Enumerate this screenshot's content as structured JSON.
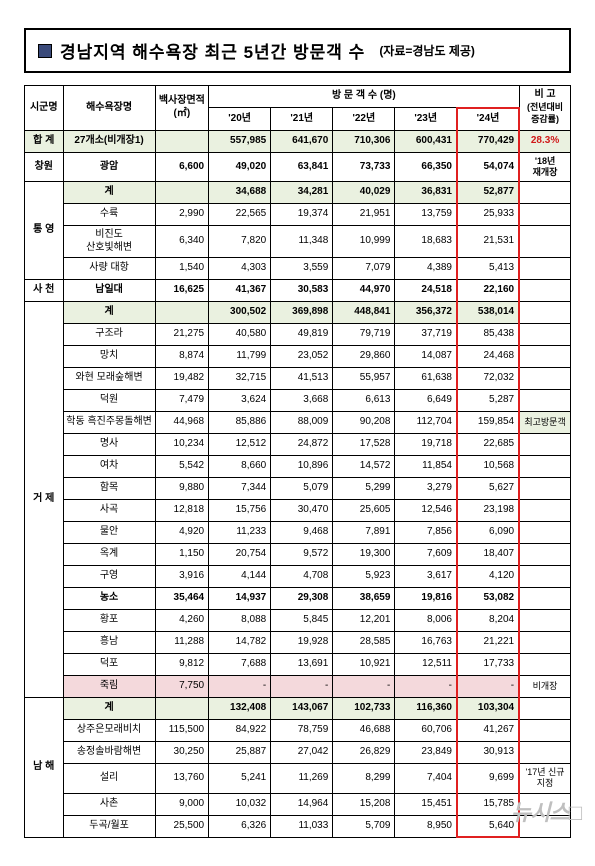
{
  "title": {
    "main": "경남지역 해수욕장 최근 5년간 방문객 수",
    "source": "(자료=경남도 제공)"
  },
  "colhead": {
    "region": "시군명",
    "beach": "해수욕장명",
    "area": "백사장면적\n(㎡)",
    "visitors_group": "방 문 객 수 (명)",
    "note": "비 고",
    "note_sub": "(전년대비\n증감률)",
    "y20": "'20년",
    "y21": "'21년",
    "y22": "'22년",
    "y23": "'23년",
    "y24": "'24년"
  },
  "total": {
    "region": "합 계",
    "beach": "27개소(비개장1)",
    "y20": "557,985",
    "y21": "641,670",
    "y22": "710,306",
    "y23": "600,431",
    "y24": "770,429",
    "note": "28.3%"
  },
  "rows": [
    {
      "region": "창원",
      "beach": "광암",
      "area": "6,600",
      "y20": "49,020",
      "y21": "63,841",
      "y22": "73,733",
      "y23": "66,350",
      "y24": "54,074",
      "note": "'18년\n재개장",
      "kind": "region-single"
    },
    {
      "region": "통 영",
      "beach": "계",
      "area": "",
      "y20": "34,688",
      "y21": "34,281",
      "y22": "40,029",
      "y23": "36,831",
      "y24": "52,877",
      "kind": "subtotal"
    },
    {
      "beach": "수륙",
      "area": "2,990",
      "y20": "22,565",
      "y21": "19,374",
      "y22": "21,951",
      "y23": "13,759",
      "y24": "25,933"
    },
    {
      "beach": "비진도\n산호빛해변",
      "area": "6,340",
      "y20": "7,820",
      "y21": "11,348",
      "y22": "10,999",
      "y23": "18,683",
      "y24": "21,531"
    },
    {
      "beach": "사량 대항",
      "area": "1,540",
      "y20": "4,303",
      "y21": "3,559",
      "y22": "7,079",
      "y23": "4,389",
      "y24": "5,413"
    },
    {
      "region": "사 천",
      "beach": "남일대",
      "area": "16,625",
      "y20": "41,367",
      "y21": "30,583",
      "y22": "44,970",
      "y23": "24,518",
      "y24": "22,160",
      "kind": "region-single-bold"
    },
    {
      "region": "거 제",
      "beach": "계",
      "area": "",
      "y20": "300,502",
      "y21": "369,898",
      "y22": "448,841",
      "y23": "356,372",
      "y24": "538,014",
      "kind": "subtotal"
    },
    {
      "beach": "구조라",
      "area": "21,275",
      "y20": "40,580",
      "y21": "49,819",
      "y22": "79,719",
      "y23": "37,719",
      "y24": "85,438"
    },
    {
      "beach": "망치",
      "area": "8,874",
      "y20": "11,799",
      "y21": "23,052",
      "y22": "29,860",
      "y23": "14,087",
      "y24": "24,468"
    },
    {
      "beach": "와현 모래숲해변",
      "area": "19,482",
      "y20": "32,715",
      "y21": "41,513",
      "y22": "55,957",
      "y23": "61,638",
      "y24": "72,032"
    },
    {
      "beach": "덕원",
      "area": "7,479",
      "y20": "3,624",
      "y21": "3,668",
      "y22": "6,613",
      "y23": "6,649",
      "y24": "5,287"
    },
    {
      "beach": "학동 흑진주몽돌해변",
      "area": "44,968",
      "y20": "85,886",
      "y21": "88,009",
      "y22": "90,208",
      "y23": "112,704",
      "y24": "159,854",
      "note": "최고방문객",
      "note_hl": true
    },
    {
      "beach": "명사",
      "area": "10,234",
      "y20": "12,512",
      "y21": "24,872",
      "y22": "17,528",
      "y23": "19,718",
      "y24": "22,685"
    },
    {
      "beach": "여차",
      "area": "5,542",
      "y20": "8,660",
      "y21": "10,896",
      "y22": "14,572",
      "y23": "11,854",
      "y24": "10,568"
    },
    {
      "beach": "함목",
      "area": "9,880",
      "y20": "7,344",
      "y21": "5,079",
      "y22": "5,299",
      "y23": "3,279",
      "y24": "5,627"
    },
    {
      "beach": "사곡",
      "area": "12,818",
      "y20": "15,756",
      "y21": "30,470",
      "y22": "25,605",
      "y23": "12,546",
      "y24": "23,198"
    },
    {
      "beach": "물안",
      "area": "4,920",
      "y20": "11,233",
      "y21": "9,468",
      "y22": "7,891",
      "y23": "7,856",
      "y24": "6,090"
    },
    {
      "beach": "옥계",
      "area": "1,150",
      "y20": "20,754",
      "y21": "9,572",
      "y22": "19,300",
      "y23": "7,609",
      "y24": "18,407"
    },
    {
      "beach": "구영",
      "area": "3,916",
      "y20": "4,144",
      "y21": "4,708",
      "y22": "5,923",
      "y23": "3,617",
      "y24": "4,120"
    },
    {
      "beach": "농소",
      "area": "35,464",
      "y20": "14,937",
      "y21": "29,308",
      "y22": "38,659",
      "y23": "19,816",
      "y24": "53,082",
      "kind": "bold-plain"
    },
    {
      "beach": "황포",
      "area": "4,260",
      "y20": "8,088",
      "y21": "5,845",
      "y22": "12,201",
      "y23": "8,006",
      "y24": "8,204"
    },
    {
      "beach": "흥남",
      "area": "11,288",
      "y20": "14,782",
      "y21": "19,928",
      "y22": "28,585",
      "y23": "16,763",
      "y24": "21,221"
    },
    {
      "beach": "덕포",
      "area": "9,812",
      "y20": "7,688",
      "y21": "13,691",
      "y22": "10,921",
      "y23": "12,511",
      "y24": "17,733"
    },
    {
      "beach": "죽림",
      "area": "7,750",
      "y20": "-",
      "y21": "-",
      "y22": "-",
      "y23": "-",
      "y24": "-",
      "note": "비개장",
      "kind": "pink"
    },
    {
      "region": "남 해",
      "beach": "계",
      "area": "",
      "y20": "132,408",
      "y21": "143,067",
      "y22": "102,733",
      "y23": "116,360",
      "y24": "103,304",
      "kind": "subtotal"
    },
    {
      "beach": "상주은모래비치",
      "area": "115,500",
      "y20": "84,922",
      "y21": "78,759",
      "y22": "46,688",
      "y23": "60,706",
      "y24": "41,267"
    },
    {
      "beach": "송정솔바람해변",
      "area": "30,250",
      "y20": "25,887",
      "y21": "27,042",
      "y22": "26,829",
      "y23": "23,849",
      "y24": "30,913"
    },
    {
      "beach": "설리",
      "area": "13,760",
      "y20": "5,241",
      "y21": "11,269",
      "y22": "8,299",
      "y23": "7,404",
      "y24": "9,699",
      "note": "'17년 신규지정"
    },
    {
      "beach": "사촌",
      "area": "9,000",
      "y20": "10,032",
      "y21": "14,964",
      "y22": "15,208",
      "y23": "15,451",
      "y24": "15,785"
    },
    {
      "beach": "두곡/월포",
      "area": "25,500",
      "y20": "6,326",
      "y21": "11,033",
      "y22": "5,709",
      "y23": "8,950",
      "y24": "5,640"
    }
  ],
  "watermark": "뉴시스□"
}
